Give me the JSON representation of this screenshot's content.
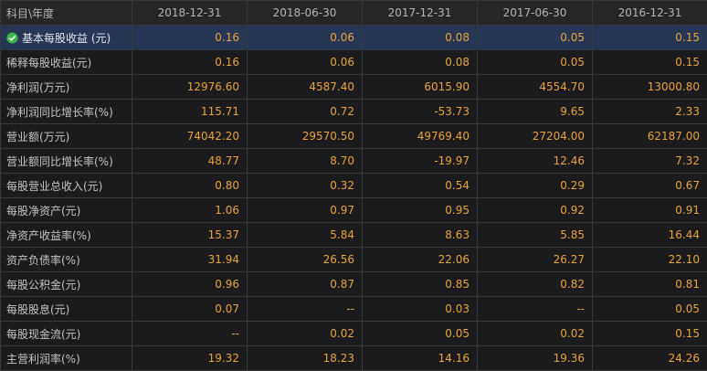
{
  "header": {
    "columns": [
      "科目\\年度",
      "2018-12-31",
      "2018-06-30",
      "2017-12-31",
      "2017-06-30",
      "2016-12-31"
    ]
  },
  "table": {
    "rows": [
      [
        "基本每股收益 (元)",
        "0.16",
        "0.06",
        "0.08",
        "0.05",
        "0.15"
      ],
      [
        "稀释每股收益(元)",
        "0.16",
        "0.06",
        "0.08",
        "0.05",
        "0.15"
      ],
      [
        "净利润(万元)",
        "12976.60",
        "4587.40",
        "6015.90",
        "4554.70",
        "13000.80"
      ],
      [
        "净利润同比增长率(%)",
        "115.71",
        "0.72",
        "-53.73",
        "9.65",
        "2.33"
      ],
      [
        "营业额(万元)",
        "74042.20",
        "29570.50",
        "49769.40",
        "27204.00",
        "62187.00"
      ],
      [
        "营业额同比增长率(%)",
        "48.77",
        "8.70",
        "-19.97",
        "12.46",
        "7.32"
      ],
      [
        "每股营业总收入(元)",
        "0.80",
        "0.32",
        "0.54",
        "0.29",
        "0.67"
      ],
      [
        "每股净资产(元)",
        "1.06",
        "0.97",
        "0.95",
        "0.92",
        "0.91"
      ],
      [
        "净资产收益率(%)",
        "15.37",
        "5.84",
        "8.63",
        "5.85",
        "16.44"
      ],
      [
        "资产负债率(%)",
        "31.94",
        "26.56",
        "22.06",
        "26.27",
        "22.10"
      ],
      [
        "每股公积金(元)",
        "0.96",
        "0.87",
        "0.85",
        "0.82",
        "0.81"
      ],
      [
        "每股股息(元)",
        "0.07",
        "--",
        "0.03",
        "--",
        "0.05"
      ],
      [
        "每股现金流(元)",
        "--",
        "0.02",
        "0.05",
        "0.02",
        "0.15"
      ],
      [
        "主营利润率(%)",
        "19.32",
        "18.23",
        "14.16",
        "19.36",
        "24.26"
      ]
    ]
  }
}
